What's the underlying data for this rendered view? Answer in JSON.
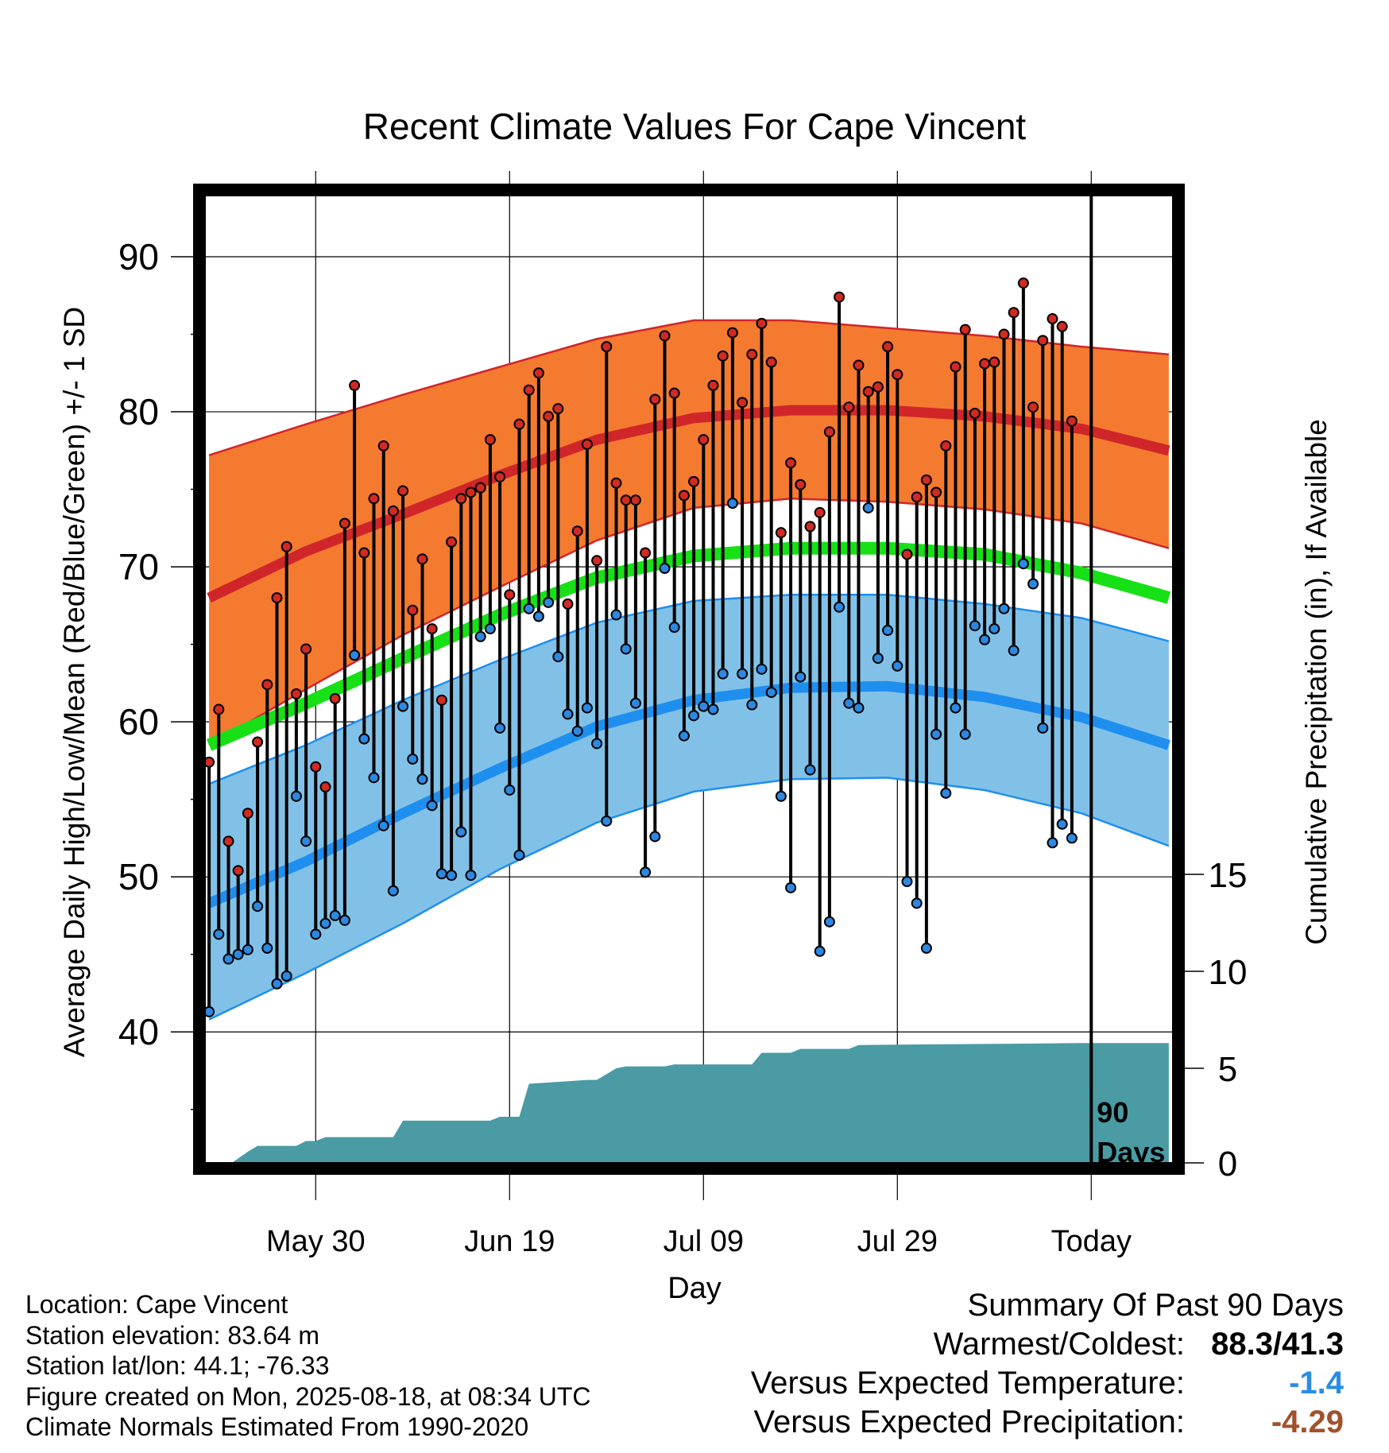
{
  "chart_data": {
    "type": "line",
    "title": "Recent Climate Values For Cape Vincent",
    "xlabel": "Day",
    "ylabel": "Average Daily High/Low/Mean (Red/Blue/Green) +/- 1 SD",
    "y2label": "Cumulative Precipitation (in), If Available",
    "x_ticks": [
      "May 30",
      "Jun 19",
      "Jul 09",
      "Jul 29",
      "Today"
    ],
    "x_tick_days": [
      11,
      31,
      51,
      71,
      91
    ],
    "xlim": [
      -0.5,
      99.5
    ],
    "ylim": [
      31.5,
      94
    ],
    "y_ticks": [
      40,
      50,
      60,
      70,
      80,
      90
    ],
    "y2lim": [
      0,
      15
    ],
    "y2_ticks": [
      0,
      5,
      10,
      15
    ],
    "today_day": 91,
    "today_label": [
      "90",
      "Days"
    ],
    "grid": true,
    "colors": {
      "high_band": "#f47a30",
      "high_line": "#d0262a",
      "low_band": "#82c1e7",
      "low_line": "#1f8fef",
      "mean_line": "#17e017",
      "precip": "#4a9ba4",
      "high_dot": "#d02a22",
      "low_dot": "#2c88e0"
    },
    "normal_days": [
      0,
      10,
      20,
      30,
      40,
      50,
      60,
      70,
      80,
      90,
      99
    ],
    "normal_high": [
      68,
      71,
      73.4,
      75.9,
      78.2,
      79.6,
      80.1,
      80.1,
      79.7,
      78.9,
      77.5
    ],
    "normal_high_upper": [
      77.2,
      79.2,
      81.1,
      82.9,
      84.7,
      85.9,
      85.9,
      85.4,
      84.9,
      84.2,
      83.7
    ],
    "normal_high_lower": [
      58.5,
      62.1,
      65.6,
      68.7,
      71.7,
      73.8,
      74.4,
      74.2,
      73.7,
      72.8,
      71.2
    ],
    "normal_mean": [
      58.5,
      61.2,
      64.1,
      66.9,
      69.3,
      70.7,
      71.2,
      71.2,
      70.8,
      69.6,
      68
    ],
    "normal_low": [
      48.3,
      51,
      54.1,
      57,
      59.7,
      61.4,
      62.2,
      62.3,
      61.6,
      60.3,
      58.5
    ],
    "normal_low_upper": [
      56,
      58.5,
      61.4,
      64,
      66.4,
      67.8,
      68.2,
      68.2,
      67.6,
      66.7,
      65.2
    ],
    "normal_low_lower": [
      40.8,
      43.8,
      47,
      50.5,
      53.5,
      55.5,
      56.3,
      56.4,
      55.6,
      54.1,
      52
    ],
    "observed": [
      {
        "day": 0,
        "high": 57.4,
        "low": 41.3
      },
      {
        "day": 1,
        "high": 60.8,
        "low": 46.3
      },
      {
        "day": 2,
        "high": 52.3,
        "low": 44.7
      },
      {
        "day": 3,
        "high": 50.4,
        "low": 45.0
      },
      {
        "day": 4,
        "high": 54.1,
        "low": 45.3
      },
      {
        "day": 5,
        "high": 58.7,
        "low": 48.1
      },
      {
        "day": 6,
        "high": 62.4,
        "low": 45.4
      },
      {
        "day": 7,
        "high": 68.0,
        "low": 43.1
      },
      {
        "day": 8,
        "high": 71.3,
        "low": 43.6
      },
      {
        "day": 9,
        "high": 61.8,
        "low": 55.2
      },
      {
        "day": 10,
        "high": 64.7,
        "low": 52.3
      },
      {
        "day": 11,
        "high": 57.1,
        "low": 46.3
      },
      {
        "day": 12,
        "high": 55.8,
        "low": 47.0
      },
      {
        "day": 13,
        "high": 61.5,
        "low": 47.5
      },
      {
        "day": 14,
        "high": 72.8,
        "low": 47.2
      },
      {
        "day": 15,
        "high": 81.7,
        "low": 64.3
      },
      {
        "day": 16,
        "high": 70.9,
        "low": 58.9
      },
      {
        "day": 17,
        "high": 74.4,
        "low": 56.4
      },
      {
        "day": 18,
        "high": 77.8,
        "low": 53.3
      },
      {
        "day": 19,
        "high": 73.6,
        "low": 49.1
      },
      {
        "day": 20,
        "high": 74.9,
        "low": 61.0
      },
      {
        "day": 21,
        "high": 67.2,
        "low": 57.6
      },
      {
        "day": 22,
        "high": 70.5,
        "low": 56.3
      },
      {
        "day": 23,
        "high": 66.0,
        "low": 54.6
      },
      {
        "day": 24,
        "high": 61.4,
        "low": 50.2
      },
      {
        "day": 25,
        "high": 71.6,
        "low": 50.1
      },
      {
        "day": 26,
        "high": 74.4,
        "low": 52.9
      },
      {
        "day": 27,
        "high": 74.8,
        "low": 50.1
      },
      {
        "day": 28,
        "high": 75.1,
        "low": 65.5
      },
      {
        "day": 29,
        "high": 78.2,
        "low": 66.0
      },
      {
        "day": 30,
        "high": 75.8,
        "low": 59.6
      },
      {
        "day": 31,
        "high": 68.2,
        "low": 55.6
      },
      {
        "day": 32,
        "high": 79.2,
        "low": 51.4
      },
      {
        "day": 33,
        "high": 81.4,
        "low": 67.3
      },
      {
        "day": 34,
        "high": 82.5,
        "low": 66.8
      },
      {
        "day": 35,
        "high": 79.7,
        "low": 67.7
      },
      {
        "day": 36,
        "high": 80.2,
        "low": 64.2
      },
      {
        "day": 37,
        "high": 67.6,
        "low": 60.5
      },
      {
        "day": 38,
        "high": 72.3,
        "low": 59.4
      },
      {
        "day": 39,
        "high": 77.9,
        "low": 60.9
      },
      {
        "day": 40,
        "high": 70.4,
        "low": 58.6
      },
      {
        "day": 41,
        "high": 84.2,
        "low": 53.6
      },
      {
        "day": 42,
        "high": 75.4,
        "low": 66.9
      },
      {
        "day": 43,
        "high": 74.3,
        "low": 64.7
      },
      {
        "day": 44,
        "high": 74.3,
        "low": 61.2
      },
      {
        "day": 45,
        "high": 70.9,
        "low": 50.3
      },
      {
        "day": 46,
        "high": 80.8,
        "low": 52.6
      },
      {
        "day": 47,
        "high": 84.9,
        "low": 69.9
      },
      {
        "day": 48,
        "high": 81.2,
        "low": 66.1
      },
      {
        "day": 49,
        "high": 74.6,
        "low": 59.1
      },
      {
        "day": 50,
        "high": 75.5,
        "low": 60.4
      },
      {
        "day": 51,
        "high": 78.2,
        "low": 61.0
      },
      {
        "day": 52,
        "high": 81.7,
        "low": 60.8
      },
      {
        "day": 53,
        "high": 83.6,
        "low": 63.1
      },
      {
        "day": 54,
        "high": 85.1,
        "low": 74.1
      },
      {
        "day": 55,
        "high": 80.6,
        "low": 63.1
      },
      {
        "day": 56,
        "high": 83.7,
        "low": 61.1
      },
      {
        "day": 57,
        "high": 85.7,
        "low": 63.4
      },
      {
        "day": 58,
        "high": 83.2,
        "low": 61.9
      },
      {
        "day": 59,
        "high": 72.2,
        "low": 55.2
      },
      {
        "day": 60,
        "high": 76.7,
        "low": 49.3
      },
      {
        "day": 61,
        "high": 75.3,
        "low": 62.9
      },
      {
        "day": 62,
        "high": 72.6,
        "low": 56.9
      },
      {
        "day": 63,
        "high": 73.5,
        "low": 45.2
      },
      {
        "day": 64,
        "high": 78.7,
        "low": 47.1
      },
      {
        "day": 65,
        "high": 87.4,
        "low": 67.4
      },
      {
        "day": 66,
        "high": 80.3,
        "low": 61.2
      },
      {
        "day": 67,
        "high": 83.0,
        "low": 60.9
      },
      {
        "day": 68,
        "high": 81.3,
        "low": 73.8
      },
      {
        "day": 69,
        "high": 81.6,
        "low": 64.1
      },
      {
        "day": 70,
        "high": 84.2,
        "low": 65.9
      },
      {
        "day": 71,
        "high": 82.4,
        "low": 63.6
      },
      {
        "day": 72,
        "high": 70.8,
        "low": 49.7
      },
      {
        "day": 73,
        "high": 74.5,
        "low": 48.3
      },
      {
        "day": 74,
        "high": 75.6,
        "low": 45.4
      },
      {
        "day": 75,
        "high": 74.8,
        "low": 59.2
      },
      {
        "day": 76,
        "high": 77.8,
        "low": 55.4
      },
      {
        "day": 77,
        "high": 82.9,
        "low": 60.9
      },
      {
        "day": 78,
        "high": 85.3,
        "low": 59.2
      },
      {
        "day": 79,
        "high": 79.9,
        "low": 66.2
      },
      {
        "day": 80,
        "high": 83.1,
        "low": 65.3
      },
      {
        "day": 81,
        "high": 83.2,
        "low": 66.0
      },
      {
        "day": 82,
        "high": 85.0,
        "low": 67.3
      },
      {
        "day": 83,
        "high": 86.4,
        "low": 64.6
      },
      {
        "day": 84,
        "high": 88.3,
        "low": 70.2
      },
      {
        "day": 85,
        "high": 80.3,
        "low": 68.9
      },
      {
        "day": 86,
        "high": 84.6,
        "low": 59.6
      },
      {
        "day": 87,
        "high": 86.0,
        "low": 52.2
      },
      {
        "day": 88,
        "high": 85.5,
        "low": 53.4
      },
      {
        "day": 89,
        "high": 79.4,
        "low": 52.5
      }
    ],
    "precip_days": [
      0,
      2,
      4,
      5,
      6,
      9,
      10,
      11,
      12,
      19,
      20,
      21,
      29,
      30,
      32,
      33,
      39,
      40,
      42,
      43,
      47,
      48,
      56,
      57,
      60,
      61,
      66,
      67,
      90,
      99
    ],
    "precip_cum": [
      0,
      0,
      0.7,
      1.0,
      1.0,
      1.0,
      1.25,
      1.25,
      1.45,
      1.45,
      2.3,
      2.3,
      2.3,
      2.5,
      2.5,
      4.2,
      4.4,
      4.4,
      5.0,
      5.1,
      5.1,
      5.2,
      5.2,
      5.8,
      5.8,
      6.0,
      6.0,
      6.2,
      6.3,
      6.3
    ]
  },
  "info": {
    "location": "Location: Cape Vincent",
    "elevation": "Station elevation: 83.64 m",
    "latlon": "Station lat/lon: 44.1; -76.33",
    "created": "Figure created on Mon, 2025-08-18, at 08:34 UTC",
    "normals": "Climate Normals Estimated From 1990-2020"
  },
  "summary": {
    "title": "Summary Of Past 90 Days",
    "warm_cold_label": "Warmest/Coldest:",
    "warm_cold_value": "88.3/41.3",
    "temp_label": "Versus Expected Temperature:",
    "temp_value": "-1.4",
    "temp_color": "#2a8de0",
    "precip_label": "Versus Expected Precipitation:",
    "precip_value": "-4.29",
    "precip_color": "#a0522d"
  }
}
